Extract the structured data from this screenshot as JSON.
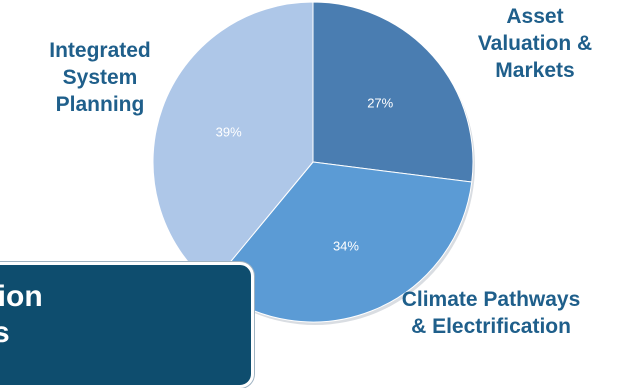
{
  "chart_data": {
    "type": "pie",
    "categories": [
      "Asset Valuation & Markets",
      "Climate Pathways & Electrification",
      "Integrated System Planning"
    ],
    "values": [
      27,
      34,
      39
    ],
    "value_labels": [
      "27%",
      "34%",
      "39%"
    ],
    "label_lines": [
      [
        "Asset",
        "Valuation &",
        "Markets"
      ],
      [
        "Climate Pathways",
        "& Electrification"
      ],
      [
        "Integrated",
        "System",
        "Planning"
      ]
    ],
    "colors": [
      "#4a7db1",
      "#5b9bd5",
      "#aec7e8"
    ],
    "label_color": "#1f5f8b"
  },
  "callout": {
    "text": "ation\nts"
  }
}
